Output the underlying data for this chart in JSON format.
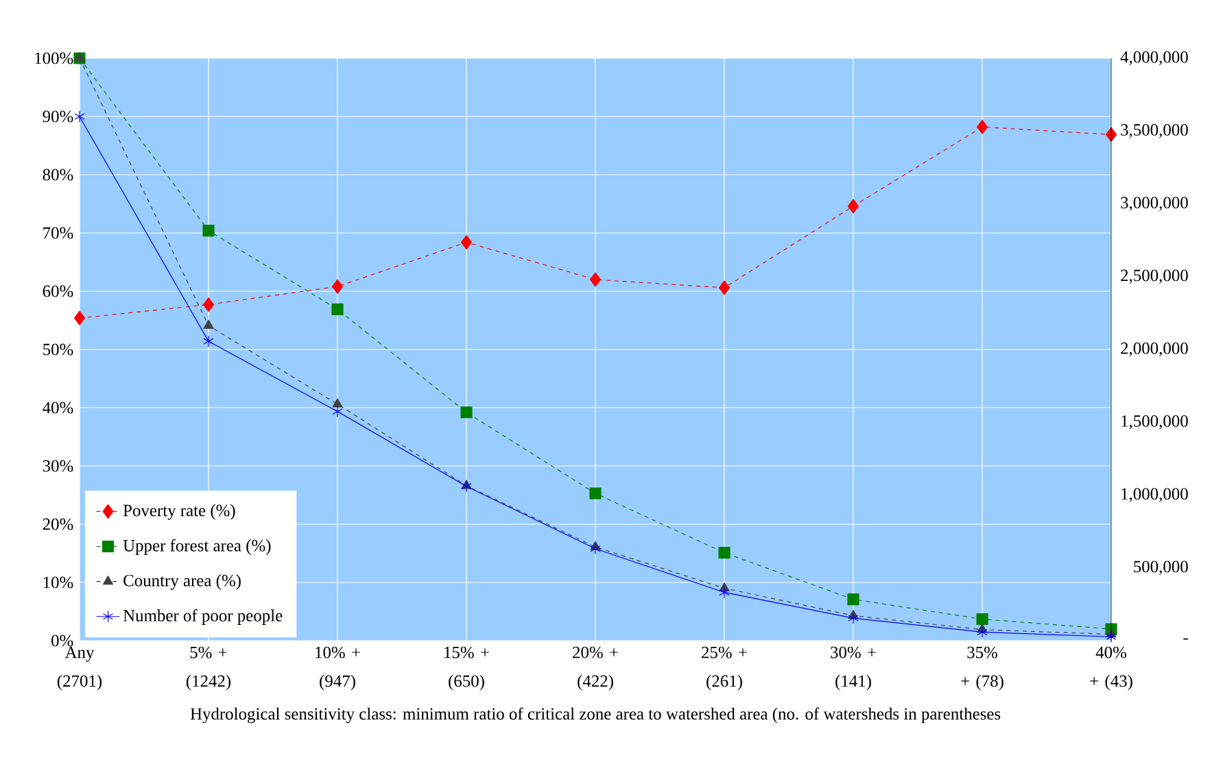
{
  "chart_data": {
    "type": "line",
    "categories": [
      "Any (2701)",
      "5% + (1242)",
      "10% + (947)",
      "15% + (650)",
      "20% + (422)",
      "25% + (261)",
      "30% + (141)",
      "35% + (78)",
      "40% + (43)"
    ],
    "xlabel": "Hydrological sensitivity class: minimum ratio of critical zone area to watershed area (no. of watersheds in parentheses",
    "series": [
      {
        "name": "Poverty rate (%)",
        "color": "#ff0000",
        "marker": "diamond",
        "line_style": "dashed",
        "values": [
          55.4,
          57.7,
          60.8,
          68.4,
          62.0,
          60.6,
          74.6,
          88.2,
          86.9
        ]
      },
      {
        "name": "Upper forest area (%)",
        "color": "#008000",
        "marker": "square",
        "line_style": "dashed",
        "values": [
          100,
          70.4,
          56.9,
          39.2,
          25.3,
          15.1,
          7.1,
          3.7,
          2.0
        ]
      },
      {
        "name": "Country area (%)",
        "color": "#404040",
        "marker": "triangle",
        "line_style": "dashed",
        "values": [
          100,
          54.1,
          40.6,
          26.6,
          16.1,
          9.0,
          4.3,
          1.9,
          1.1
        ]
      },
      {
        "name": "Number of poor people",
        "color": "#0000ff",
        "marker": "cross",
        "line_style": "solid",
        "axis": "y2",
        "values": [
          3600000,
          2056000,
          1574000,
          1060000,
          632000,
          332000,
          155000,
          59000,
          27000
        ]
      }
    ],
    "ylim": [
      0,
      100
    ],
    "yticks": [
      {
        "value": 0,
        "label": "0%"
      },
      {
        "value": 10,
        "label": "10%"
      },
      {
        "value": 20,
        "label": "20%"
      },
      {
        "value": 30,
        "label": "30%"
      },
      {
        "value": 40,
        "label": "40%"
      },
      {
        "value": 50,
        "label": "50%"
      },
      {
        "value": 60,
        "label": "60%"
      },
      {
        "value": 70,
        "label": "70%"
      },
      {
        "value": 80,
        "label": "80%"
      },
      {
        "value": 90,
        "label": "90%"
      },
      {
        "value": 100,
        "label": "100%"
      }
    ],
    "y2lim": [
      0,
      4000000
    ],
    "y2ticks": [
      {
        "value": 0,
        "label": "-"
      },
      {
        "value": 500000,
        "label": "500,000"
      },
      {
        "value": 1000000,
        "label": "1,000,000"
      },
      {
        "value": 1500000,
        "label": "1,500,000"
      },
      {
        "value": 2000000,
        "label": "2,000,000"
      },
      {
        "value": 2500000,
        "label": "2,500,000"
      },
      {
        "value": 3000000,
        "label": "3,000,000"
      },
      {
        "value": 3500000,
        "label": "3,500,000"
      },
      {
        "value": 4000000,
        "label": "4,000,000"
      }
    ],
    "grid": true,
    "legend": "bottom left"
  }
}
